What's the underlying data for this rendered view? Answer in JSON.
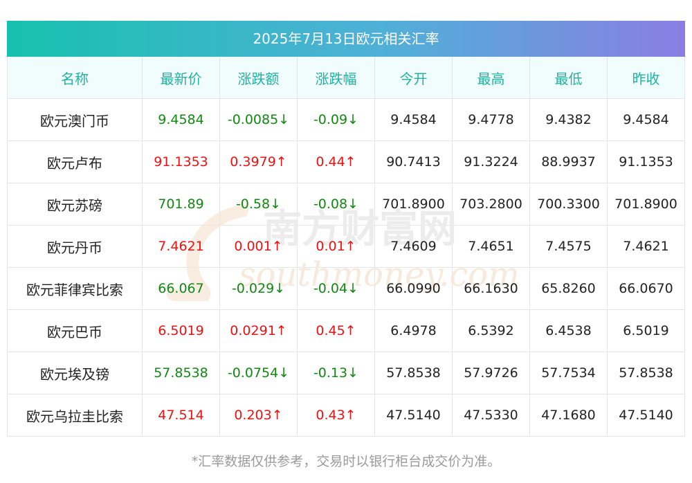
{
  "title": "2025年7月13日欧元相关汇率",
  "columns": [
    "名称",
    "最新价",
    "涨跌额",
    "涨跌幅",
    "今开",
    "最高",
    "最低",
    "昨收"
  ],
  "rows": [
    {
      "name": "欧元澳门币",
      "latest": "9.4584",
      "change": "-0.0085↓",
      "pct": "-0.09↓",
      "open": "9.4584",
      "high": "9.4778",
      "low": "9.4382",
      "prev": "9.4584",
      "trend": "down"
    },
    {
      "name": "欧元卢布",
      "latest": "91.1353",
      "change": "0.3979↑",
      "pct": "0.44↑",
      "open": "90.7413",
      "high": "91.3224",
      "low": "88.9937",
      "prev": "91.1353",
      "trend": "up"
    },
    {
      "name": "欧元苏磅",
      "latest": "701.89",
      "change": "-0.58↓",
      "pct": "-0.08↓",
      "open": "701.8900",
      "high": "703.2800",
      "low": "700.3300",
      "prev": "701.8900",
      "trend": "down"
    },
    {
      "name": "欧元丹币",
      "latest": "7.4621",
      "change": "0.001↑",
      "pct": "0.01↑",
      "open": "7.4609",
      "high": "7.4651",
      "low": "7.4575",
      "prev": "7.4621",
      "trend": "up"
    },
    {
      "name": "欧元菲律宾比索",
      "latest": "66.067",
      "change": "-0.029↓",
      "pct": "-0.04↓",
      "open": "66.0990",
      "high": "66.1630",
      "low": "65.8260",
      "prev": "66.0670",
      "trend": "down"
    },
    {
      "name": "欧元巴币",
      "latest": "6.5019",
      "change": "0.0291↑",
      "pct": "0.45↑",
      "open": "6.4978",
      "high": "6.5392",
      "low": "6.4538",
      "prev": "6.5019",
      "trend": "up"
    },
    {
      "name": "欧元埃及镑",
      "latest": "57.8538",
      "change": "-0.0754↓",
      "pct": "-0.13↓",
      "open": "57.8538",
      "high": "57.9726",
      "low": "57.7534",
      "prev": "57.8538",
      "trend": "down"
    },
    {
      "name": "欧元乌拉圭比索",
      "latest": "47.514",
      "change": "0.203↑",
      "pct": "0.43↑",
      "open": "47.5140",
      "high": "47.5330",
      "low": "47.1680",
      "prev": "47.5140",
      "trend": "up"
    }
  ],
  "watermark": {
    "cn": "南方财富网",
    "en": "southmoney.com"
  },
  "footnote": "*汇率数据仅供参考，交易时以银行柜台成交价为准。",
  "colors": {
    "up": "#ee1111",
    "down": "#118811",
    "header_text": "#20b2a2"
  }
}
